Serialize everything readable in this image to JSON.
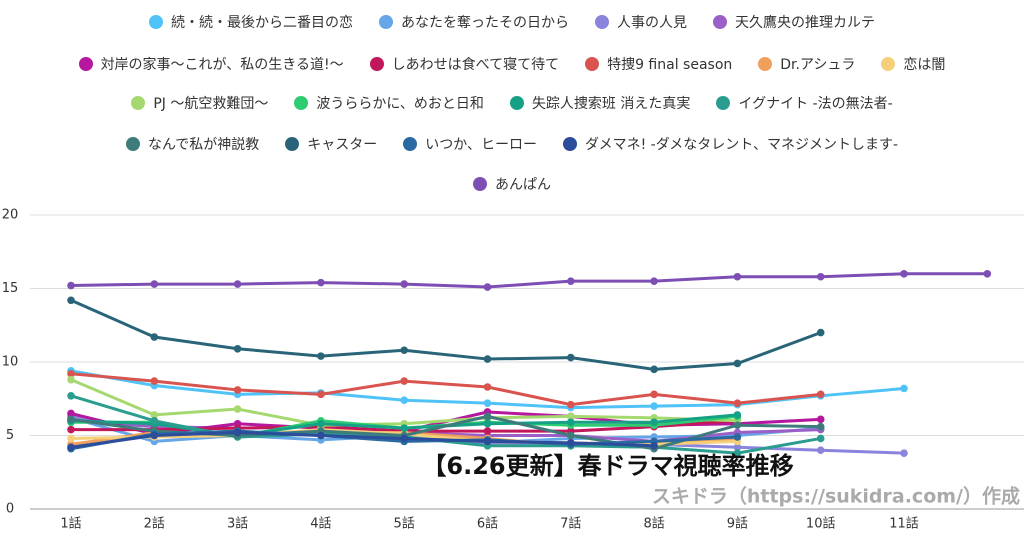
{
  "chart_data": {
    "type": "line",
    "annotation": "【6.26更新】春ドラマ視聴率推移",
    "credit": "スキドラ（https://sukidra.com/）作成",
    "categories": [
      "1話",
      "2話",
      "3話",
      "4話",
      "5話",
      "6話",
      "7話",
      "8話",
      "9話",
      "10話",
      "11話",
      null
    ],
    "ylim": [
      0,
      20
    ],
    "yticks": [
      0,
      5,
      10,
      15,
      20
    ],
    "grid": true,
    "series": [
      {
        "name": "続・続・最後から二番目の恋",
        "color": "#4fc3f7",
        "values": [
          9.4,
          8.4,
          7.8,
          7.9,
          7.4,
          7.2,
          6.9,
          7.0,
          7.1,
          7.7,
          8.2,
          null
        ]
      },
      {
        "name": "あなたを奪ったその日から",
        "color": "#64a6e8",
        "values": [
          6.2,
          4.6,
          5.0,
          4.7,
          5.0,
          4.5,
          4.8,
          4.9,
          5.0,
          5.5,
          null,
          null
        ]
      },
      {
        "name": "人事の人見",
        "color": "#8a84dc",
        "values": [
          6.3,
          5.2,
          5.0,
          5.1,
          4.8,
          4.5,
          4.5,
          4.4,
          4.2,
          4.0,
          3.8,
          null
        ]
      },
      {
        "name": "天久鷹央の推理カルテ",
        "color": "#9b5fc8",
        "values": [
          6.0,
          5.6,
          5.5,
          5.6,
          5.2,
          5.0,
          5.0,
          4.6,
          5.2,
          5.4,
          null,
          null
        ]
      },
      {
        "name": "対岸の家事～これが、私の生きる道!～",
        "color": "#b5179e",
        "values": [
          6.5,
          5.1,
          5.8,
          5.5,
          5.3,
          6.6,
          6.3,
          5.7,
          5.8,
          6.1,
          null,
          null
        ]
      },
      {
        "name": "しあわせは食べて寝て待て",
        "color": "#c2185b",
        "values": [
          5.4,
          5.4,
          5.5,
          5.6,
          5.3,
          5.3,
          5.3,
          5.6,
          6.0,
          null,
          null,
          null
        ]
      },
      {
        "name": "特捜9 final season",
        "color": "#d9534f",
        "values": [
          9.2,
          8.7,
          8.1,
          7.8,
          8.7,
          8.3,
          7.1,
          7.8,
          7.2,
          7.8,
          null,
          null
        ]
      },
      {
        "name": "Dr.アシュラ",
        "color": "#f0a05a",
        "values": [
          4.4,
          5.2,
          5.0,
          5.2,
          5.2,
          4.8,
          4.3,
          4.5,
          4.8,
          null,
          null,
          null
        ]
      },
      {
        "name": "恋は闇",
        "color": "#f5cf7a",
        "values": [
          4.8,
          4.9,
          5.0,
          5.4,
          5.1,
          4.6,
          4.5,
          4.4,
          4.6,
          null,
          null,
          null
        ]
      },
      {
        "name": "PJ ～航空救難団～",
        "color": "#a5d86e",
        "values": [
          8.8,
          6.4,
          6.8,
          5.7,
          5.8,
          6.2,
          6.3,
          6.2,
          6.0,
          null,
          null,
          null
        ]
      },
      {
        "name": "波うららかに、めおと日和",
        "color": "#2ecc71",
        "values": [
          5.9,
          5.9,
          4.9,
          6.0,
          5.5,
          5.9,
          5.7,
          5.7,
          6.3,
          null,
          null,
          null
        ]
      },
      {
        "name": "失踪人捜索班 消えた真実",
        "color": "#16a085",
        "values": [
          6.0,
          5.8,
          5.0,
          5.8,
          5.5,
          5.8,
          5.9,
          5.9,
          6.4,
          null,
          null,
          null
        ]
      },
      {
        "name": "イグナイト -法の無法者-",
        "color": "#2a9d8f",
        "values": [
          7.7,
          6.0,
          4.9,
          5.1,
          4.9,
          4.3,
          4.3,
          4.2,
          3.8,
          4.8,
          null,
          null
        ]
      },
      {
        "name": "なんで私が神説教",
        "color": "#3e7c7c",
        "values": [
          6.1,
          5.3,
          5.0,
          5.3,
          5.0,
          6.3,
          5.0,
          4.1,
          5.7,
          5.6,
          null,
          null
        ]
      },
      {
        "name": "キャスター",
        "color": "#2a6478",
        "values": [
          14.2,
          11.7,
          10.9,
          10.4,
          10.8,
          10.2,
          10.3,
          9.5,
          9.9,
          12.0,
          null,
          null
        ]
      },
      {
        "name": "いつか、ヒーロー",
        "color": "#2a6aa0",
        "values": [
          4.1,
          5.1,
          5.3,
          5.0,
          4.6,
          4.7,
          4.4,
          4.6,
          4.9,
          null,
          null,
          null
        ]
      },
      {
        "name": "ダメマネ! -ダメなタレント、マネジメントします-",
        "color": "#2b4d9c",
        "values": [
          4.2,
          5.0,
          5.2,
          5.0,
          4.8,
          4.6,
          4.5,
          4.3,
          null,
          null,
          null,
          null
        ]
      },
      {
        "name": "あんぱん",
        "color": "#7d4fb5",
        "values": [
          15.2,
          15.3,
          15.3,
          15.4,
          15.3,
          15.1,
          15.5,
          15.5,
          15.8,
          15.8,
          16.0,
          16.0
        ]
      }
    ]
  }
}
